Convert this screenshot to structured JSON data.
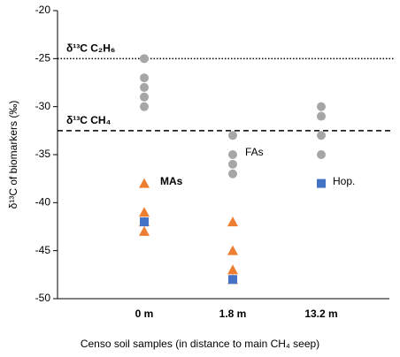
{
  "chart_data": {
    "type": "scatter",
    "x_label": "Censo soil samples (in distance to main CH₄ seep)",
    "y_label": "δ¹³C of biomarkers (‰)",
    "categories": [
      "0 m",
      "1.8 m",
      "13.2 m"
    ],
    "ylim": [
      -50,
      -20
    ],
    "yticks": [
      -50,
      -45,
      -40,
      -35,
      -30,
      -25,
      -20
    ],
    "series": [
      {
        "name": "FAs",
        "color": "#a6a6a6",
        "marker": "circle",
        "x": [
          "0 m",
          "0 m",
          "0 m",
          "0 m",
          "0 m",
          "1.8 m",
          "1.8 m",
          "1.8 m",
          "1.8 m",
          "13.2 m",
          "13.2 m",
          "13.2 m",
          "13.2 m"
        ],
        "values": [
          -25,
          -27,
          -28,
          -29,
          -30,
          -33,
          -35,
          -36,
          -37,
          -30,
          -31,
          -33,
          -35
        ]
      },
      {
        "name": "MAs",
        "color": "#ed7d31",
        "marker": "triangle",
        "x": [
          "0 m",
          "0 m",
          "0 m",
          "0 m",
          "1.8 m",
          "1.8 m",
          "1.8 m",
          "1.8 m"
        ],
        "values": [
          -38,
          -41,
          -42,
          -43,
          -42,
          -45,
          -47,
          -48
        ]
      },
      {
        "name": "Hop.",
        "color": "#4472c4",
        "marker": "square",
        "x": [
          "0 m",
          "1.8 m",
          "13.2 m"
        ],
        "values": [
          -42,
          -48,
          -38
        ]
      }
    ],
    "reference_lines": [
      {
        "label": "δ¹³C C₂H₆",
        "value": -25,
        "style": "dotted"
      },
      {
        "label": "δ¹³C CH₄",
        "value": -32.5,
        "style": "dashed"
      }
    ]
  }
}
